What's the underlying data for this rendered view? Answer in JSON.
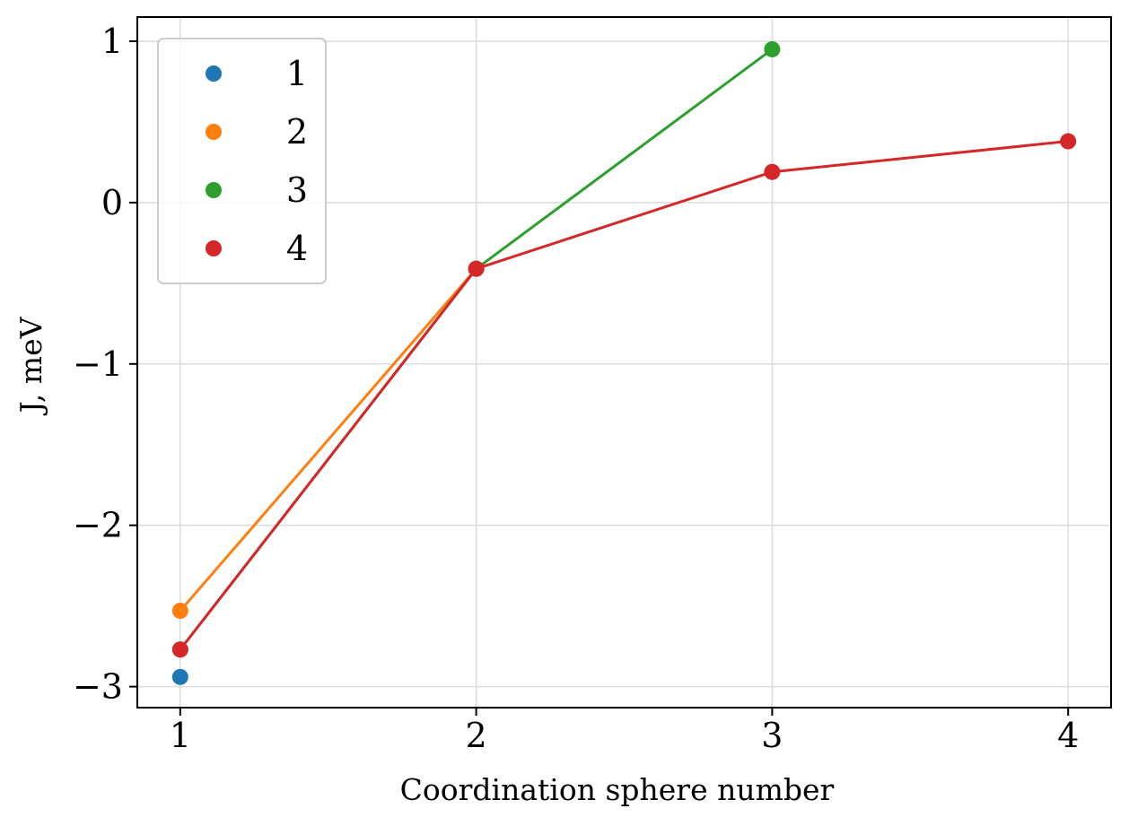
{
  "chart_data": {
    "type": "line",
    "title": "",
    "xlabel": "Coordination sphere number",
    "ylabel": "J, meV",
    "xlim": [
      0.855,
      4.145
    ],
    "ylim": [
      -3.13,
      1.15
    ],
    "xticks": [
      1,
      2,
      3,
      4
    ],
    "xtick_labels": [
      "1",
      "2",
      "3",
      "4"
    ],
    "yticks": [
      1,
      0,
      -1,
      -2,
      -3
    ],
    "ytick_labels": [
      "1",
      "0",
      "−1",
      "−2",
      "−3"
    ],
    "grid": true,
    "legend_position": "upper-left",
    "series": [
      {
        "name": "1",
        "color": "#1f77b4",
        "x": [
          1
        ],
        "y": [
          -2.94
        ]
      },
      {
        "name": "2",
        "color": "#ff7f0e",
        "x": [
          1,
          2
        ],
        "y": [
          -2.53,
          -0.41
        ]
      },
      {
        "name": "3",
        "color": "#2ca02c",
        "x": [
          1,
          2,
          3
        ],
        "y": [
          -2.77,
          -0.41,
          0.95
        ]
      },
      {
        "name": "4",
        "color": "#d62728",
        "x": [
          1,
          2,
          3,
          4
        ],
        "y": [
          -2.77,
          -0.41,
          0.19,
          0.38
        ]
      }
    ]
  }
}
